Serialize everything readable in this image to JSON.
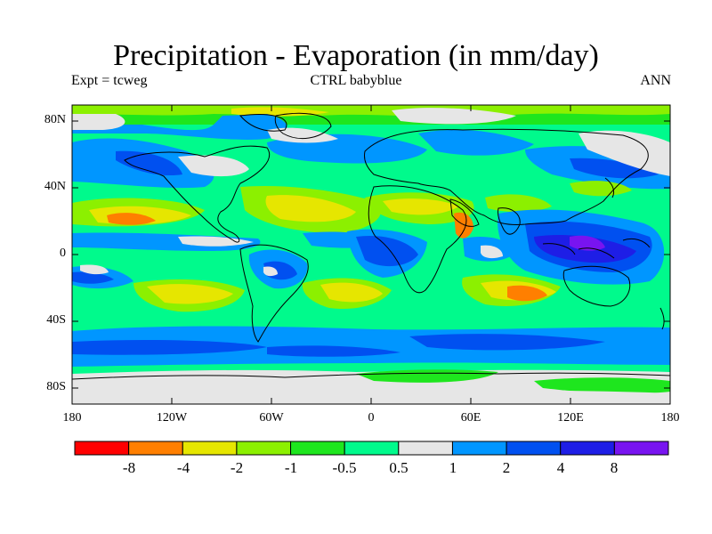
{
  "title": "Precipitation - Evaporation (in mm/day)",
  "subtitle_left": "Expt = tcweg",
  "subtitle_center": "CTRL babyblue",
  "subtitle_right": "ANN",
  "lat_ticks": [
    "80N",
    "40N",
    "0",
    "40S",
    "80S"
  ],
  "lon_ticks": [
    "180",
    "120W",
    "60W",
    "0",
    "60E",
    "120E",
    "180"
  ],
  "colorbar": {
    "colors": [
      "#ff0000",
      "#ff7f00",
      "#e6e600",
      "#8cf000",
      "#1ee61e",
      "#00fa8c",
      "#e6e6e6",
      "#0096ff",
      "#0050f0",
      "#1e1ee6",
      "#7814f0"
    ],
    "labels": [
      "-8",
      "-4",
      "-2",
      "-1",
      "-0.5",
      "0.5",
      "1",
      "2",
      "4",
      "8"
    ]
  },
  "palette": {
    "lt_-8": "#ff0000",
    "-8_-4": "#ff7f00",
    "-4_-2": "#e6e600",
    "-2_-1": "#8cf000",
    "-1_-0.5": "#1ee61e",
    "-0.5_0.5": "#00fa8c",
    "0.5_1": "#e6e6e6",
    "1_2": "#0096ff",
    "2_4": "#0050f0",
    "4_8": "#1e1ee6",
    "gt_8": "#7814f0"
  }
}
